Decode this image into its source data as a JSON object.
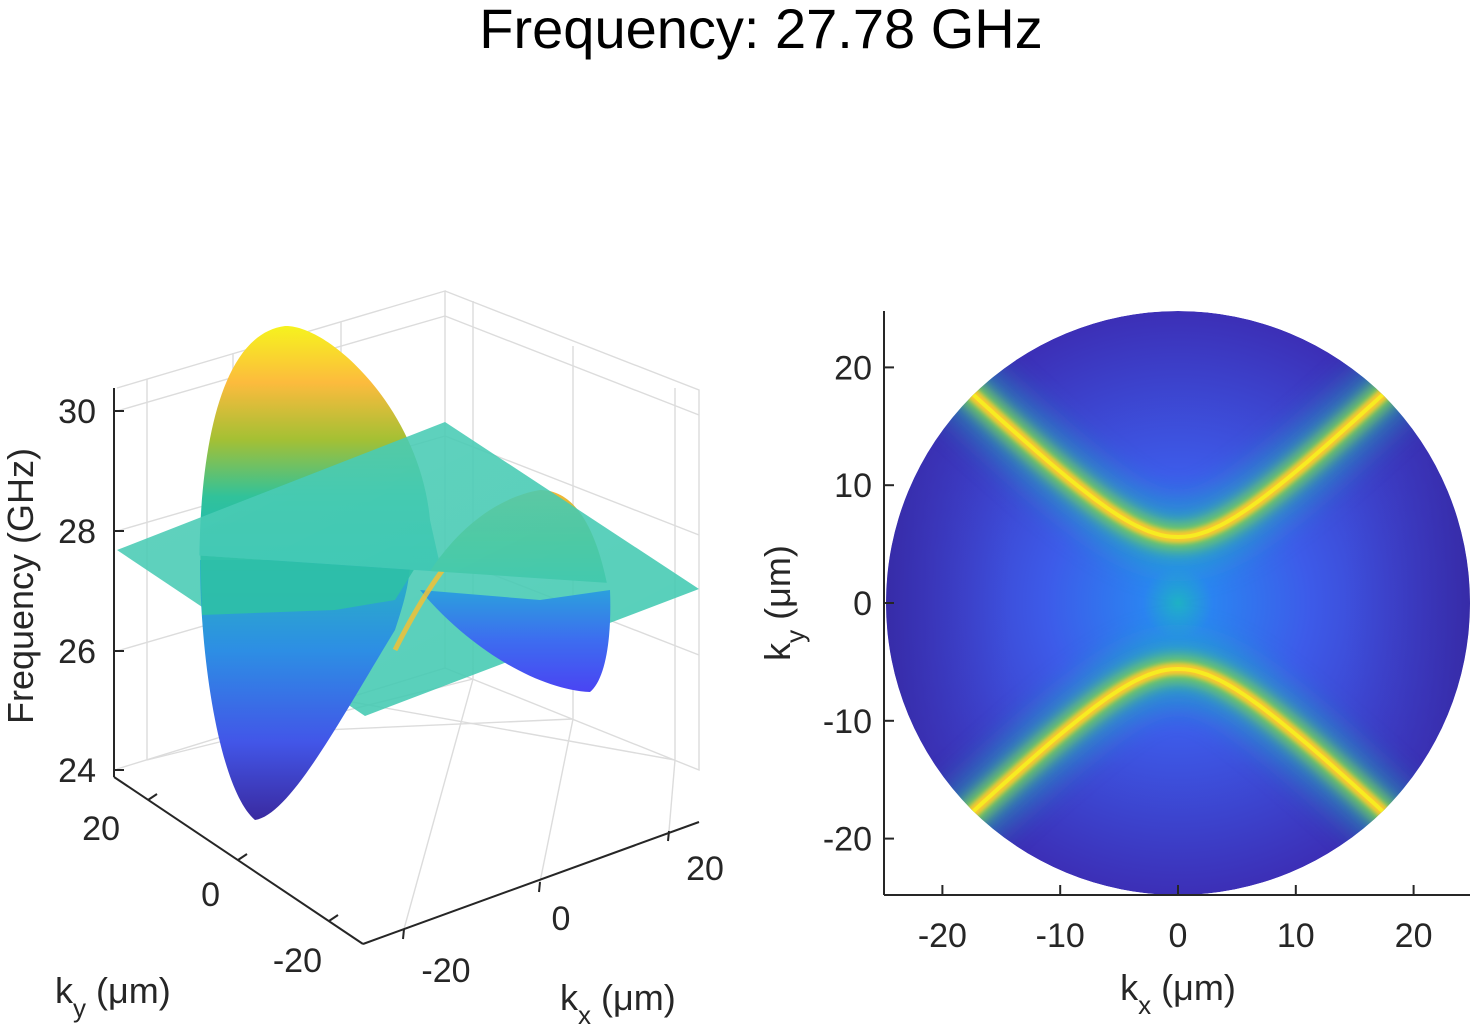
{
  "figure": {
    "title": "Frequency: 27.78 GHz"
  },
  "chart_data": [
    {
      "type": "surface3d",
      "title": "",
      "xlabel": {
        "main": "k",
        "sub": "x",
        "unit": " (μm)"
      },
      "ylabel": {
        "main": "k",
        "sub": "y",
        "unit": " (μm)"
      },
      "zlabel": "Frequency (GHz)",
      "xlim": [
        -25,
        25
      ],
      "ylim": [
        -25,
        25
      ],
      "zlim": [
        24,
        30.5
      ],
      "xticks": [
        "-20",
        "0",
        "20"
      ],
      "yticks": [
        "20",
        "0",
        "-20"
      ],
      "zticks": [
        "30",
        "28",
        "26",
        "24"
      ],
      "grid": true,
      "colormap": "parula",
      "surface": {
        "domain": "disk radius 25 μm",
        "peak_max_GHz": 30.4,
        "valley_min_GHz": 24.2,
        "peak_direction": "+k_y",
        "valley_direction": "-k_y"
      },
      "slice_plane": {
        "frequency_GHz": 27.78,
        "color": "#40c8b0"
      }
    },
    {
      "type": "heatmap",
      "title": "",
      "xlabel": {
        "main": "k",
        "sub": "x",
        "unit": " (μm)"
      },
      "ylabel": {
        "main": "k",
        "sub": "y",
        "unit": " (μm)"
      },
      "xlim": [
        -25,
        25
      ],
      "ylim": [
        -25,
        25
      ],
      "xticks": [
        -20,
        -10,
        0,
        10,
        20
      ],
      "yticks": [
        20,
        10,
        0,
        -10,
        -20
      ],
      "x_tick_labels": [
        "-20",
        "-10",
        "0",
        "10",
        "20"
      ],
      "y_tick_labels": [
        "20",
        "10",
        "0",
        "-10",
        "-20"
      ],
      "colormap": "parula",
      "domain_radius": 25,
      "isofrequency_GHz": 27.78,
      "hyperbola": {
        "a": 5.6,
        "b": 5.8
      }
    }
  ]
}
